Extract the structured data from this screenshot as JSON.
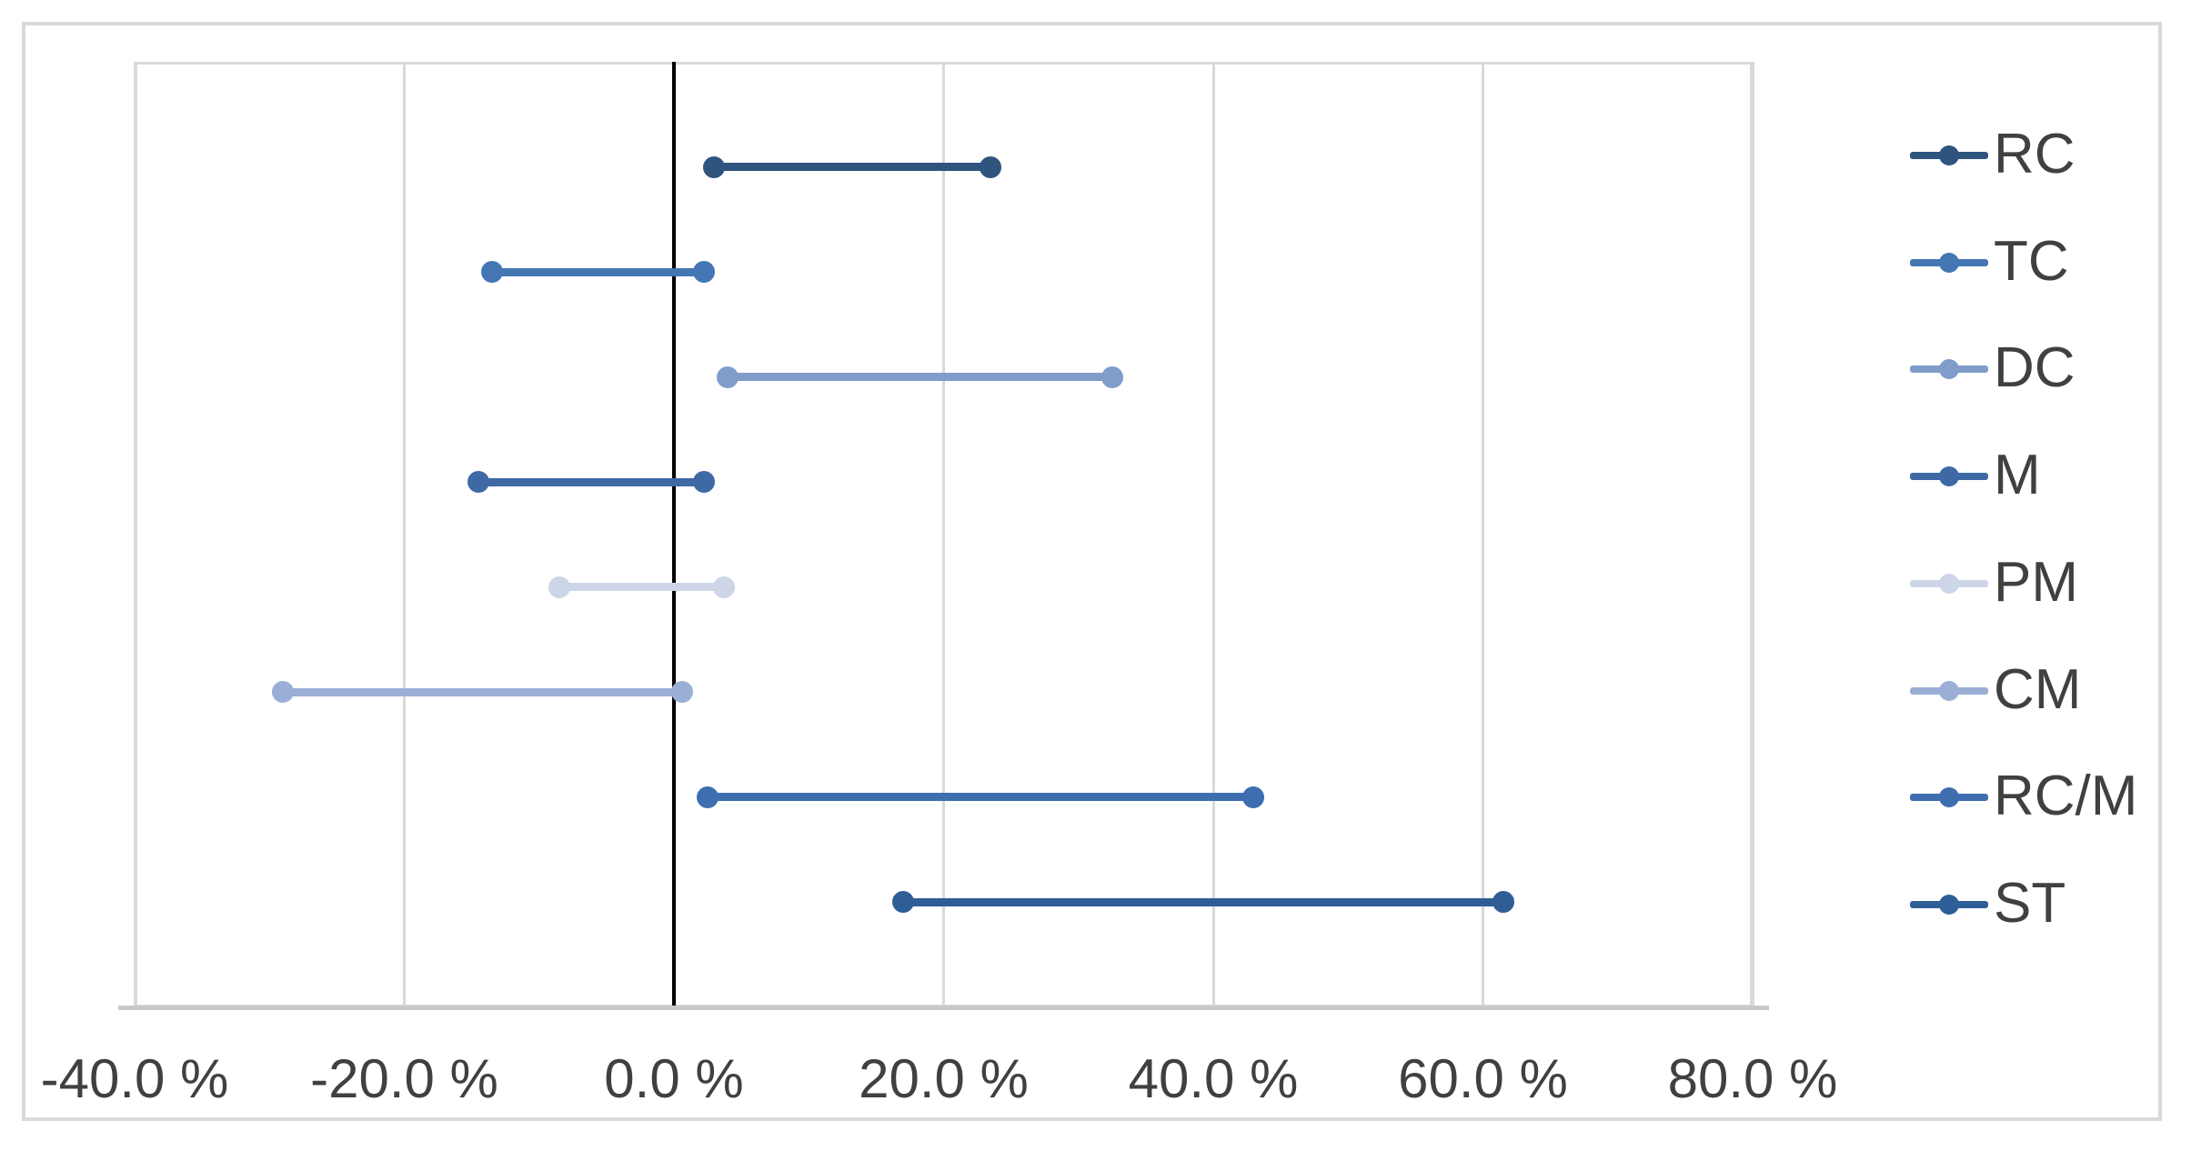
{
  "chart_data": {
    "type": "dumbbell-range",
    "title": "",
    "xlabel": "",
    "ylabel": "",
    "grid": true,
    "zero_line": true,
    "x_axis": {
      "min": -40,
      "max": 80,
      "gridline_step": 20,
      "tick_values": [
        -40,
        -20,
        0,
        20,
        40,
        60,
        80
      ],
      "tick_labels": [
        "-40.0 %",
        "-20.0 %",
        "0.0 %",
        "20.0 %",
        "40.0 %",
        "60.0 %",
        "80.0 %"
      ]
    },
    "series": [
      {
        "name": "RC",
        "low": 3.0,
        "high": 23.5,
        "color": "#2F547E"
      },
      {
        "name": "TC",
        "low": -13.5,
        "high": 2.2,
        "color": "#4476B4"
      },
      {
        "name": "DC",
        "low": 4.0,
        "high": 32.5,
        "color": "#809DCA"
      },
      {
        "name": "M",
        "low": -14.5,
        "high": 2.2,
        "color": "#3E69A4"
      },
      {
        "name": "PM",
        "low": -8.5,
        "high": 3.7,
        "color": "#CDD6E8"
      },
      {
        "name": "CM",
        "low": -29.0,
        "high": 0.6,
        "color": "#9BAFD6"
      },
      {
        "name": "RC/M",
        "low": 2.5,
        "high": 43.0,
        "color": "#3E6EB0"
      },
      {
        "name": "ST",
        "low": 17.0,
        "high": 61.5,
        "color": "#2F5E96"
      }
    ],
    "legend": {
      "position": "right",
      "entries": [
        "RC",
        "TC",
        "DC",
        "M",
        "PM",
        "CM",
        "RC/M",
        "ST"
      ]
    },
    "colors": {
      "gridline": "#d9d9d9",
      "zero_line": "#000000",
      "axis_line": "#c9c9c9",
      "tick_text": "#404040",
      "legend_text": "#404040",
      "chart_border": "#d9d9d9",
      "background": "#ffffff"
    }
  }
}
